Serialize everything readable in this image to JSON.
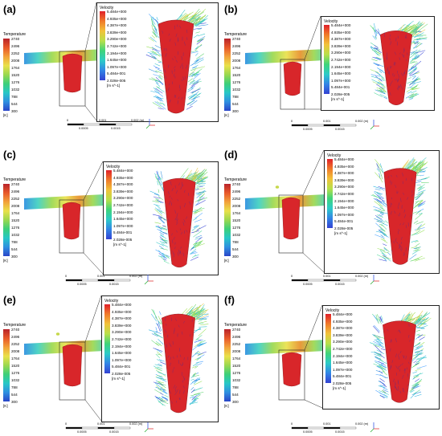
{
  "temperature_legend": {
    "title": "Temperature",
    "ticks": [
      "2740",
      "2496",
      "2252",
      "2008",
      "1764",
      "1520",
      "1276",
      "1032",
      "788",
      "544",
      "300"
    ],
    "unit": "[K]"
  },
  "velocity_legend": {
    "title": "Velocity",
    "ticks": [
      "5.484e+000",
      "4.935e+000",
      "4.387e+000",
      "3.839e+000",
      "3.290e+000",
      "2.742e+000",
      "2.194e+000",
      "1.645e+000",
      "1.097e+000",
      "5.484e-001",
      "2.028e-005"
    ],
    "unit": "[m s^-1]"
  },
  "scale_bar": {
    "top_labels": [
      "0",
      "0.001",
      "0.002 (m)"
    ],
    "bottom_labels": [
      "0.0005",
      "0.0015"
    ]
  },
  "colors": {
    "temp_gradient": [
      "#b8232b",
      "#e8582a",
      "#f2a13a",
      "#e9e14a",
      "#9ad84f",
      "#3ccf7a",
      "#27c7c7",
      "#2f8fe0",
      "#2a45c8"
    ],
    "vel_gradient": [
      "#e0202a",
      "#f07a2a",
      "#f2c23a",
      "#b8e04a",
      "#3fd47a",
      "#2ccbc8",
      "#3285e6",
      "#3442d2"
    ],
    "melt_pool": "#d8262a",
    "axis_x": "#e23a3a",
    "axis_y": "#2fae3a",
    "axis_z": "#3a5ae2"
  },
  "panels": [
    {
      "label": "(a)"
    },
    {
      "label": "(b)"
    },
    {
      "label": "(c)"
    },
    {
      "label": "(d)"
    },
    {
      "label": "(e)"
    },
    {
      "label": "(f)"
    }
  ]
}
